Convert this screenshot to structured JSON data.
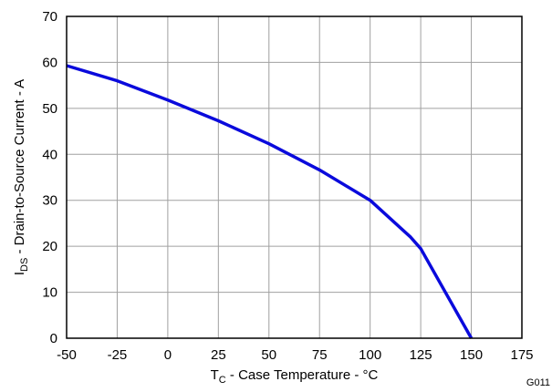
{
  "chart_data": {
    "type": "line",
    "title": "",
    "xlabel": {
      "main": "T",
      "sub": "C",
      "rest": " - Case Temperature - °C"
    },
    "ylabel": {
      "main": "I",
      "sub": "DS",
      "rest": " - Drain-to-Source Current - A"
    },
    "xlim": [
      -50,
      175
    ],
    "ylim": [
      0,
      70
    ],
    "xticks": [
      -50,
      -25,
      0,
      25,
      50,
      75,
      100,
      125,
      150,
      175
    ],
    "yticks": [
      0,
      10,
      20,
      30,
      40,
      50,
      60,
      70
    ],
    "grid": true,
    "line_color": "#0a0adc",
    "series": [
      {
        "x": [
          -50,
          -25,
          0,
          25,
          50,
          75,
          100,
          120,
          125,
          150
        ],
        "y": [
          59.3,
          56,
          51.8,
          47.3,
          42.3,
          36.6,
          30,
          22,
          19.5,
          0
        ]
      }
    ],
    "figure_id": "G011"
  }
}
